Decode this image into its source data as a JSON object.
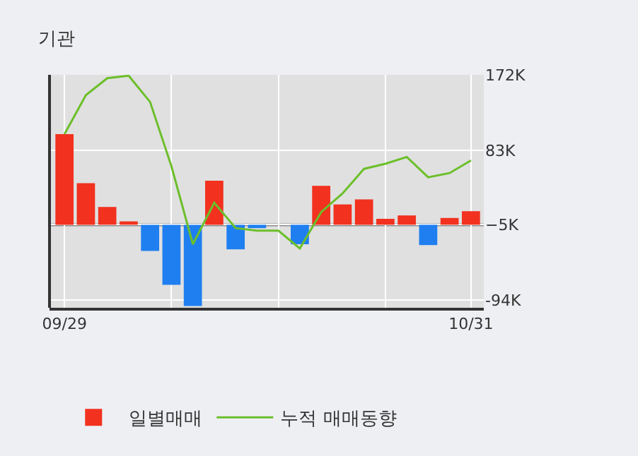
{
  "chart_data": {
    "type": "bar",
    "title": "기관",
    "categories": [
      "09/29",
      null,
      null,
      null,
      null,
      null,
      null,
      null,
      null,
      null,
      null,
      null,
      null,
      null,
      null,
      null,
      null,
      null,
      null,
      "10/31"
    ],
    "series": [
      {
        "name": "일별매매",
        "values": [
          107,
          49,
          21,
          4,
          -31,
          -71,
          -96,
          52,
          -29,
          -4,
          null,
          -23,
          46,
          24,
          30,
          7,
          11,
          -24,
          8,
          16
        ],
        "base": [
          -5,
          -5,
          -5,
          -5,
          -5,
          -5,
          -5,
          -5,
          -5,
          -5,
          null,
          -5,
          -5,
          -5,
          -5,
          -5,
          -5,
          -5,
          -5,
          -5
        ],
        "colors": [
          "#f2311f",
          "#f2311f",
          "#f2311f",
          "#f2311f",
          "#1f7ff0",
          "#1f7ff0",
          "#1f7ff0",
          "#f2311f",
          "#1f7ff0",
          "#1f7ff0",
          "#1f7ff0",
          "#1f7ff0",
          "#f2311f",
          "#f2311f",
          "#f2311f",
          "#f2311f",
          "#f2311f",
          "#1f7ff0",
          "#f2311f",
          "#f2311f"
        ]
      },
      {
        "name": "누적 매매동향",
        "type": "line",
        "color": "#6cbf2a",
        "values": [
          102,
          148,
          168,
          171,
          140,
          64,
          -28,
          21,
          -9,
          -12,
          -12,
          -33,
          10,
          32,
          61,
          67,
          75,
          51,
          56,
          71
        ]
      }
    ],
    "ylim": [
      -103,
      172
    ],
    "yticks": [
      {
        "value": 172,
        "label": "172K"
      },
      {
        "value": 83,
        "label": "83K"
      },
      {
        "value": -5,
        "label": "−5K"
      },
      {
        "value": -94,
        "label": "-94K"
      }
    ],
    "ref_lines": [
      {
        "axis": "y",
        "value": -5,
        "color": "#8c8c8c"
      }
    ],
    "grid": true,
    "legend": "bottom",
    "marker": "none",
    "line_style": "solid"
  }
}
